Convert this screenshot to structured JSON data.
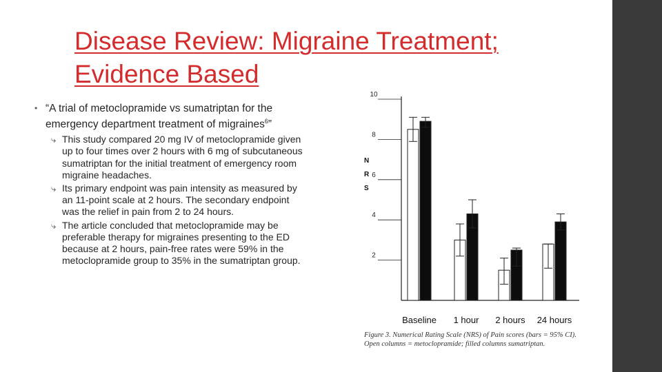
{
  "title": {
    "line1": "Disease Review: Migraine Treatment;",
    "line2": "Evidence Based"
  },
  "bullet": {
    "marker": "•",
    "text_before": "“A trial of metoclopramide vs sumatriptan for the emergency department treatment of migraines",
    "sup": "6",
    "text_after": "”"
  },
  "sub_marker": "⤷",
  "sub_bullets": [
    "This study compared 20 mg IV of metoclopramide given up to four times over 2 hours with 6 mg of subcutaneous sumatriptan for the initial treatment of emergency room migraine headaches.",
    "Its primary endpoint was pain intensity as measured by an 11-point scale at 2 hours. The secondary endpoint was the relief in pain from 2 to 24 hours.",
    "The article concluded that metoclopramide may be preferable therapy for migraines presenting to the ED because at 2 hours, pain-free rates were 59% in the metoclopramide group to 35% in the sumatriptan group."
  ],
  "caption": "Figure 3.   Numerical Rating Scale (NRS) of Pain scores (bars = 95% CI). Open columns = metoclopramide; filled columns   sumatriptan.",
  "chart_data": {
    "type": "bar",
    "categories": [
      "Baseline",
      "1 hour",
      "2 hours",
      "24 hours"
    ],
    "ylabel": "NRS",
    "ylim": [
      0,
      10
    ],
    "yticks": [
      "10",
      "8",
      "6",
      "4",
      "2"
    ],
    "grid": false,
    "series": [
      {
        "name": "metoclopramide",
        "fill": "open",
        "values": [
          8.5,
          3.0,
          1.5,
          2.8
        ],
        "ci": [
          [
            7.9,
            9.1
          ],
          [
            2.2,
            3.8
          ],
          [
            0.8,
            2.1
          ],
          [
            1.6,
            2.8
          ]
        ]
      },
      {
        "name": "sumatriptan",
        "fill": "filled",
        "values": [
          8.9,
          4.3,
          2.5,
          3.9
        ],
        "ci": [
          [
            8.6,
            9.1
          ],
          [
            3.6,
            5.0
          ],
          [
            1.7,
            2.6
          ],
          [
            3.5,
            4.3
          ]
        ]
      }
    ]
  }
}
